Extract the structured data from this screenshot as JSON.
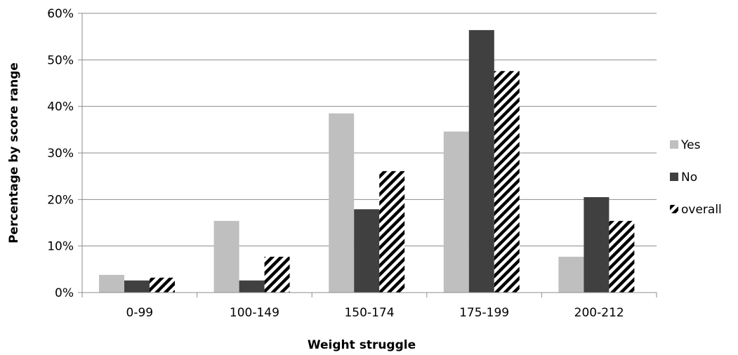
{
  "chart_data": {
    "type": "bar",
    "title": "",
    "xlabel": "Weight struggle",
    "ylabel": "Percentage by score range",
    "categories": [
      "0-99",
      "100-149",
      "150-174",
      "175-199",
      "200-212"
    ],
    "ylim": [
      0,
      60
    ],
    "yticks": [
      0,
      10,
      20,
      30,
      40,
      50,
      60
    ],
    "ytick_labels": [
      "0%",
      "10%",
      "20%",
      "30%",
      "40%",
      "50%",
      "60%"
    ],
    "grid": "horizontal",
    "legend_position": "right",
    "series": [
      {
        "name": "Yes",
        "values": [
          3.8,
          15.4,
          38.5,
          34.6,
          7.7
        ],
        "color": "#bfbfbf",
        "pattern": "solid"
      },
      {
        "name": "No",
        "values": [
          2.6,
          2.6,
          17.9,
          56.4,
          20.5
        ],
        "color": "#404040",
        "pattern": "solid"
      },
      {
        "name": "overall",
        "values": [
          3.2,
          7.7,
          26.1,
          47.6,
          15.4
        ],
        "color": "#000000",
        "pattern": "diagonal-stripes"
      }
    ]
  }
}
